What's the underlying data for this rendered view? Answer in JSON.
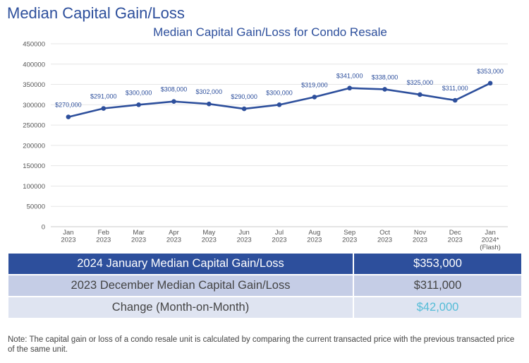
{
  "page": {
    "title": "Median Capital Gain/Loss"
  },
  "chart_data": {
    "type": "line",
    "title": "Median Capital Gain/Loss for Condo Resale",
    "xlabel": "",
    "ylabel": "",
    "ylim": [
      0,
      450000
    ],
    "yticks": [
      0,
      50000,
      100000,
      150000,
      200000,
      250000,
      300000,
      350000,
      400000,
      450000
    ],
    "categories": [
      [
        "Jan",
        "2023"
      ],
      [
        "Feb",
        "2023"
      ],
      [
        "Mar",
        "2023"
      ],
      [
        "Apr",
        "2023"
      ],
      [
        "May",
        "2023"
      ],
      [
        "Jun",
        "2023"
      ],
      [
        "Jul",
        "2023"
      ],
      [
        "Aug",
        "2023"
      ],
      [
        "Sep",
        "2023"
      ],
      [
        "Oct",
        "2023"
      ],
      [
        "Nov",
        "2023"
      ],
      [
        "Dec",
        "2023"
      ],
      [
        "Jan",
        "2024*",
        "(Flash)"
      ]
    ],
    "series": [
      {
        "values": [
          270000,
          291000,
          300000,
          308000,
          302000,
          290000,
          300000,
          319000,
          341000,
          338000,
          325000,
          311000,
          353000
        ],
        "labels": [
          "$270,000",
          "$291,000",
          "$300,000",
          "$308,000",
          "$302,000",
          "$290,000",
          "$300,000",
          "$319,000",
          "$341,000",
          "$338,000",
          "$325,000",
          "$311,000",
          "$353,000"
        ]
      }
    ],
    "colors": {
      "line": "#2d4f9c",
      "grid": "#e6e6e6"
    },
    "grid": true,
    "legend": "none"
  },
  "summary": {
    "rows": [
      {
        "label": "2024 January Median Capital Gain/Loss",
        "value": "$353,000"
      },
      {
        "label": "2023 December Median Capital Gain/Loss",
        "value": "$311,000"
      },
      {
        "label": "Change (Month-on-Month)",
        "value": "$42,000"
      }
    ],
    "colors": {
      "header": "#2d4f9c",
      "row2": "#c5cde6",
      "row3": "#dfe4f1",
      "change_value": "#55bcd7"
    }
  },
  "note": "Note: The capital gain or loss of a condo resale unit is calculated by comparing the current transacted price with the previous transacted price of the same unit."
}
